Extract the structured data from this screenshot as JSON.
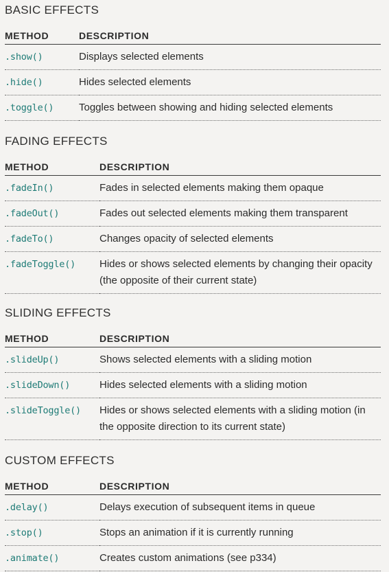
{
  "header_method": "METHOD",
  "header_description": "DESCRIPTION",
  "sections": [
    {
      "title": "BASIC EFFECTS",
      "rows": [
        {
          "method": ".show()",
          "description": "Displays selected elements"
        },
        {
          "method": ".hide()",
          "description": "Hides selected elements"
        },
        {
          "method": ".toggle()",
          "description": "Toggles between showing and hiding selected elements"
        }
      ]
    },
    {
      "title": "FADING EFFECTS",
      "rows": [
        {
          "method": ".fadeIn()",
          "description": "Fades in selected elements making them opaque"
        },
        {
          "method": ".fadeOut()",
          "description": "Fades out selected elements making them transparent"
        },
        {
          "method": ".fadeTo()",
          "description": "Changes opacity of selected elements"
        },
        {
          "method": ".fadeToggle()",
          "description": "Hides or shows selected elements by changing their opacity (the opposite of their current state)"
        }
      ]
    },
    {
      "title": "SLIDING EFFECTS",
      "rows": [
        {
          "method": ".slideUp()",
          "description": "Shows selected elements with a sliding motion"
        },
        {
          "method": ".slideDown()",
          "description": "Hides selected elements with a sliding motion"
        },
        {
          "method": ".slideToggle()",
          "description": "Hides or shows selected elements with a sliding motion (in the opposite direction to its current state)"
        }
      ]
    },
    {
      "title": "CUSTOM EFFECTS",
      "rows": [
        {
          "method": ".delay()",
          "description": "Delays execution of subsequent items in queue"
        },
        {
          "method": ".stop()",
          "description": "Stops an animation if it is currently running"
        },
        {
          "method": ".animate()",
          "description": "Creates custom animations (see p334)"
        }
      ]
    }
  ],
  "colors": {
    "method_text": "#1e7b76",
    "body_text": "#2b2b2b",
    "background": "#f4f3f1"
  }
}
